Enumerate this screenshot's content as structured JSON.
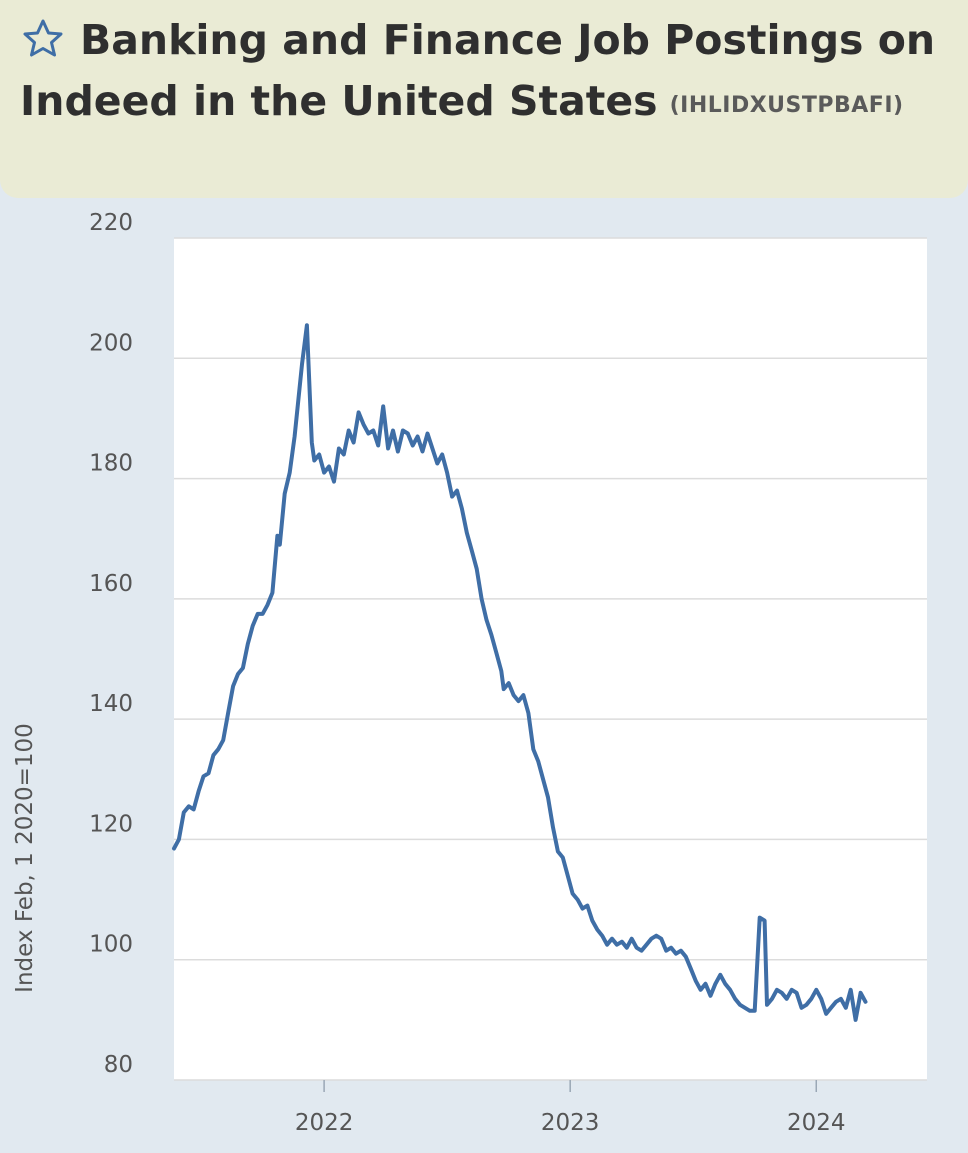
{
  "header": {
    "title": "Banking and Finance Job Postings on Indeed in the United States",
    "series_id": "(IHLIDXUSTPBAFI)",
    "star_icon": "star-outline-icon"
  },
  "colors": {
    "header_bg": "#eaebd5",
    "page_bg": "#e1e9f0",
    "plot_bg": "#ffffff",
    "line": "#3f6ea6",
    "grid": "#dcdcdc",
    "title": "#2f2f2f",
    "star": "#3f6ea6"
  },
  "chart_data": {
    "type": "line",
    "title": "Banking and Finance Job Postings on Indeed in the United States",
    "ylabel": "Index Feb, 1 2020=100",
    "xlabel": "",
    "ylim": [
      80,
      220
    ],
    "yticks": [
      "80",
      "100",
      "120",
      "140",
      "160",
      "180",
      "200",
      "220"
    ],
    "xticks": [
      {
        "label": "2022",
        "value": 2022.0
      },
      {
        "label": "2023",
        "value": 2023.0
      },
      {
        "label": "2024",
        "value": 2024.0
      }
    ],
    "xlim": [
      2021.39,
      2024.45
    ],
    "grid": true,
    "series": [
      {
        "values": [
          [
            2021.39,
            118.5
          ],
          [
            2021.41,
            120
          ],
          [
            2021.43,
            124.5
          ],
          [
            2021.45,
            125.5
          ],
          [
            2021.47,
            125
          ],
          [
            2021.49,
            128
          ],
          [
            2021.51,
            130.5
          ],
          [
            2021.53,
            131
          ],
          [
            2021.55,
            134
          ],
          [
            2021.57,
            135
          ],
          [
            2021.59,
            136.5
          ],
          [
            2021.61,
            141
          ],
          [
            2021.63,
            145.5
          ],
          [
            2021.65,
            147.5
          ],
          [
            2021.67,
            148.5
          ],
          [
            2021.69,
            152.5
          ],
          [
            2021.71,
            155.5
          ],
          [
            2021.73,
            157.5
          ],
          [
            2021.75,
            157.5
          ],
          [
            2021.77,
            159
          ],
          [
            2021.79,
            161
          ],
          [
            2021.81,
            170.5
          ],
          [
            2021.82,
            169
          ],
          [
            2021.84,
            177.5
          ],
          [
            2021.86,
            181
          ],
          [
            2021.88,
            187
          ],
          [
            2021.91,
            199
          ],
          [
            2021.93,
            205.5
          ],
          [
            2021.95,
            186
          ],
          [
            2021.96,
            183
          ],
          [
            2021.98,
            184
          ],
          [
            2022.0,
            181
          ],
          [
            2022.02,
            182
          ],
          [
            2022.04,
            179.5
          ],
          [
            2022.06,
            185
          ],
          [
            2022.08,
            184
          ],
          [
            2022.1,
            188
          ],
          [
            2022.12,
            186
          ],
          [
            2022.14,
            191
          ],
          [
            2022.16,
            189
          ],
          [
            2022.18,
            187.5
          ],
          [
            2022.2,
            188
          ],
          [
            2022.22,
            185.5
          ],
          [
            2022.24,
            192
          ],
          [
            2022.26,
            185
          ],
          [
            2022.28,
            188
          ],
          [
            2022.3,
            184.5
          ],
          [
            2022.32,
            188
          ],
          [
            2022.34,
            187.5
          ],
          [
            2022.36,
            185.5
          ],
          [
            2022.38,
            187
          ],
          [
            2022.4,
            184.5
          ],
          [
            2022.42,
            187.5
          ],
          [
            2022.44,
            185
          ],
          [
            2022.46,
            182.5
          ],
          [
            2022.48,
            184
          ],
          [
            2022.5,
            181
          ],
          [
            2022.52,
            177
          ],
          [
            2022.54,
            178
          ],
          [
            2022.56,
            175
          ],
          [
            2022.58,
            171
          ],
          [
            2022.6,
            168
          ],
          [
            2022.62,
            165
          ],
          [
            2022.64,
            160
          ],
          [
            2022.66,
            156.5
          ],
          [
            2022.68,
            154
          ],
          [
            2022.7,
            151
          ],
          [
            2022.72,
            148
          ],
          [
            2022.73,
            145
          ],
          [
            2022.75,
            146
          ],
          [
            2022.77,
            144
          ],
          [
            2022.79,
            143
          ],
          [
            2022.81,
            144
          ],
          [
            2022.83,
            141
          ],
          [
            2022.85,
            135
          ],
          [
            2022.87,
            133
          ],
          [
            2022.89,
            130
          ],
          [
            2022.91,
            127
          ],
          [
            2022.93,
            122
          ],
          [
            2022.95,
            118
          ],
          [
            2022.97,
            117
          ],
          [
            2022.99,
            114
          ],
          [
            2023.01,
            111
          ],
          [
            2023.03,
            110
          ],
          [
            2023.05,
            108.5
          ],
          [
            2023.07,
            109
          ],
          [
            2023.09,
            106.5
          ],
          [
            2023.11,
            105
          ],
          [
            2023.13,
            104
          ],
          [
            2023.15,
            102.5
          ],
          [
            2023.17,
            103.5
          ],
          [
            2023.19,
            102.5
          ],
          [
            2023.21,
            103
          ],
          [
            2023.23,
            102
          ],
          [
            2023.25,
            103.5
          ],
          [
            2023.27,
            102
          ],
          [
            2023.29,
            101.5
          ],
          [
            2023.31,
            102.5
          ],
          [
            2023.33,
            103.5
          ],
          [
            2023.35,
            104
          ],
          [
            2023.37,
            103.5
          ],
          [
            2023.39,
            101.5
          ],
          [
            2023.41,
            102
          ],
          [
            2023.43,
            101
          ],
          [
            2023.45,
            101.5
          ],
          [
            2023.47,
            100.5
          ],
          [
            2023.49,
            98.5
          ],
          [
            2023.51,
            96.5
          ],
          [
            2023.53,
            95
          ],
          [
            2023.55,
            96
          ],
          [
            2023.57,
            94
          ],
          [
            2023.59,
            96
          ],
          [
            2023.61,
            97.5
          ],
          [
            2023.63,
            96
          ],
          [
            2023.65,
            95
          ],
          [
            2023.67,
            93.5
          ],
          [
            2023.69,
            92.5
          ],
          [
            2023.71,
            92
          ],
          [
            2023.73,
            91.5
          ],
          [
            2023.75,
            91.5
          ],
          [
            2023.77,
            107
          ],
          [
            2023.79,
            106.5
          ],
          [
            2023.8,
            92.5
          ],
          [
            2023.82,
            93.5
          ],
          [
            2023.84,
            95
          ],
          [
            2023.86,
            94.5
          ],
          [
            2023.88,
            93.5
          ],
          [
            2023.9,
            95
          ],
          [
            2023.92,
            94.5
          ],
          [
            2023.94,
            92
          ],
          [
            2023.96,
            92.5
          ],
          [
            2023.98,
            93.5
          ],
          [
            2024.0,
            95
          ],
          [
            2024.02,
            93.5
          ],
          [
            2024.04,
            91
          ],
          [
            2024.06,
            92
          ],
          [
            2024.08,
            93
          ],
          [
            2024.1,
            93.5
          ],
          [
            2024.12,
            92
          ],
          [
            2024.14,
            95
          ],
          [
            2024.16,
            90
          ],
          [
            2024.18,
            94.5
          ],
          [
            2024.2,
            93
          ]
        ]
      }
    ]
  }
}
